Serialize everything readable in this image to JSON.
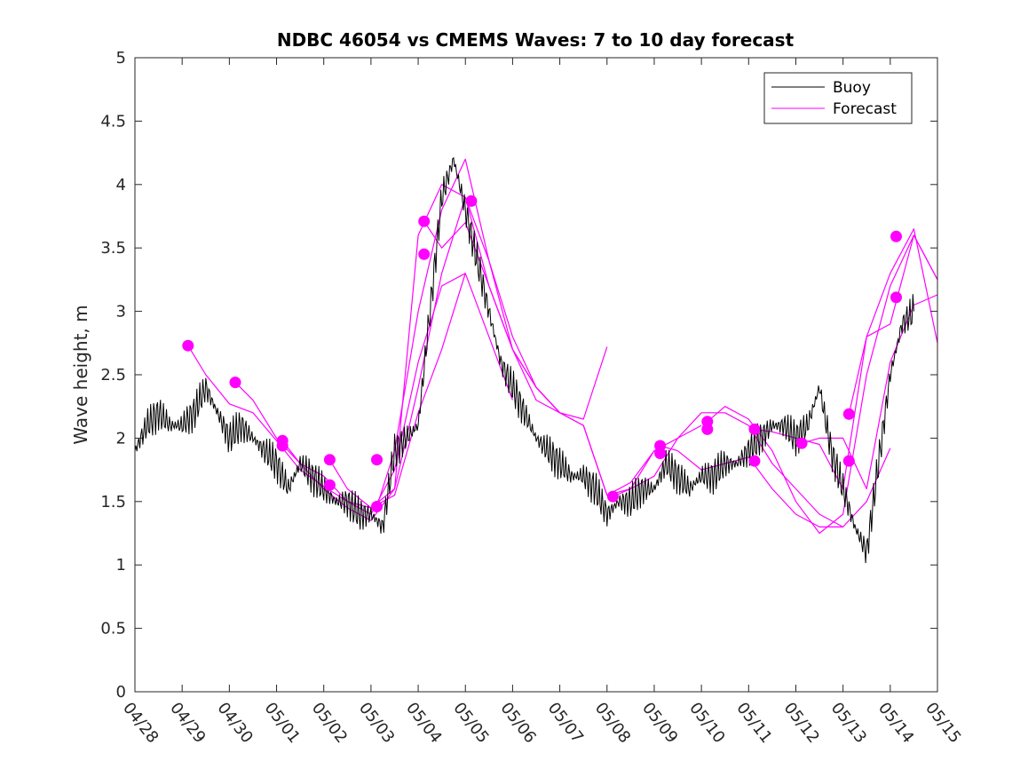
{
  "chart_data": {
    "type": "line",
    "title": "NDBC 46054 vs CMEMS Waves: 7 to 10 day forecast",
    "xlabel": "",
    "ylabel": "Wave height, m",
    "x_type": "date",
    "x_tick_labels": [
      "04/28",
      "04/29",
      "04/30",
      "05/01",
      "05/02",
      "05/03",
      "05/04",
      "05/05",
      "05/06",
      "05/07",
      "05/08",
      "05/09",
      "05/10",
      "05/11",
      "05/12",
      "05/13",
      "05/14",
      "05/15"
    ],
    "xlim": [
      "04/28",
      "05/15"
    ],
    "y_ticks": [
      "0",
      "0.5",
      "1",
      "1.5",
      "2",
      "2.5",
      "3",
      "3.5",
      "4",
      "4.5",
      "5"
    ],
    "ylim": [
      0,
      5
    ],
    "grid": false,
    "legend": {
      "position": "top-right",
      "entries": [
        "Buoy",
        "Forecast"
      ]
    },
    "colors": {
      "buoy": "#000000",
      "forecast": "#ff00ff"
    },
    "buoy": {
      "name": "Buoy",
      "x": [
        "04/28 00:00",
        "04/28 06:00",
        "04/28 12:00",
        "04/28 18:00",
        "04/29 00:00",
        "04/29 06:00",
        "04/29 12:00",
        "04/29 18:00",
        "04/30 00:00",
        "04/30 06:00",
        "04/30 12:00",
        "04/30 18:00",
        "05/01 00:00",
        "05/01 06:00",
        "05/01 12:00",
        "05/01 18:00",
        "05/02 00:00",
        "05/02 06:00",
        "05/02 12:00",
        "05/02 18:00",
        "05/03 00:00",
        "05/03 06:00",
        "05/03 12:00",
        "05/03 18:00",
        "05/04 00:00",
        "05/04 06:00",
        "05/04 12:00",
        "05/04 18:00",
        "05/05 00:00",
        "05/05 06:00",
        "05/05 12:00",
        "05/05 18:00",
        "05/06 00:00",
        "05/06 06:00",
        "05/06 12:00",
        "05/06 18:00",
        "05/07 00:00",
        "05/07 06:00",
        "05/07 12:00",
        "05/07 18:00",
        "05/08 00:00",
        "05/08 06:00",
        "05/08 12:00",
        "05/08 18:00",
        "05/09 00:00",
        "05/09 06:00",
        "05/09 12:00",
        "05/09 18:00",
        "05/10 00:00",
        "05/10 06:00",
        "05/10 12:00",
        "05/10 18:00",
        "05/11 00:00",
        "05/11 06:00",
        "05/11 12:00",
        "05/11 18:00",
        "05/12 00:00",
        "05/12 06:00",
        "05/12 12:00",
        "05/12 18:00",
        "05/13 00:00",
        "05/13 06:00",
        "05/13 12:00",
        "05/13 18:00",
        "05/14 00:00",
        "05/14 06:00",
        "05/14 12:00"
      ],
      "values": [
        1.9,
        2.1,
        2.2,
        2.1,
        2.1,
        2.2,
        2.4,
        2.2,
        2.0,
        2.1,
        2.0,
        1.9,
        1.8,
        1.6,
        1.8,
        1.7,
        1.6,
        1.5,
        1.5,
        1.4,
        1.4,
        1.3,
        1.9,
        2.0,
        2.1,
        3.0,
        3.9,
        4.2,
        3.8,
        3.4,
        3.0,
        2.6,
        2.4,
        2.2,
        2.0,
        1.9,
        1.8,
        1.7,
        1.7,
        1.6,
        1.4,
        1.5,
        1.5,
        1.6,
        1.6,
        1.8,
        1.7,
        1.6,
        1.7,
        1.7,
        1.8,
        1.8,
        1.9,
        2.0,
        2.1,
        2.1,
        2.0,
        2.1,
        2.4,
        1.9,
        1.6,
        1.3,
        1.1,
        1.8,
        2.5,
        2.9,
        3.0
      ]
    },
    "forecasts": [
      {
        "name": "Forecast",
        "x": [
          "04/29 03:00",
          "04/29 12:00",
          "04/30 00:00",
          "04/30 12:00",
          "05/01 00:00",
          "05/01 12:00",
          "05/02 00:00",
          "05/02 12:00",
          "05/03 00:00",
          "05/03 12:00",
          "05/04 00:00",
          "05/04 12:00",
          "05/05 00:00"
        ],
        "values": [
          2.73,
          2.5,
          2.27,
          2.2,
          1.98,
          1.75,
          1.62,
          1.5,
          1.4,
          1.75,
          2.6,
          3.2,
          3.3
        ]
      },
      {
        "name": "Forecast",
        "x": [
          "04/30 03:00",
          "04/30 12:00",
          "05/01 00:00",
          "05/01 12:00",
          "05/02 00:00",
          "05/02 12:00",
          "05/03 00:00",
          "05/03 12:00",
          "05/04 00:00",
          "05/04 12:00",
          "05/05 00:00",
          "05/05 12:00",
          "05/06 00:00"
        ],
        "values": [
          2.44,
          2.3,
          2.0,
          1.8,
          1.7,
          1.5,
          1.45,
          1.55,
          2.2,
          2.7,
          3.3,
          2.8,
          2.3
        ]
      },
      {
        "name": "Forecast",
        "x": [
          "05/01 03:00",
          "05/01 12:00",
          "05/02 00:00",
          "05/02 12:00",
          "05/03 00:00",
          "05/03 12:00",
          "05/04 00:00",
          "05/04 12:00",
          "05/05 00:00",
          "05/05 12:00",
          "05/06 00:00",
          "05/06 12:00",
          "05/07 00:00"
        ],
        "values": [
          1.98,
          1.8,
          1.6,
          1.45,
          1.35,
          1.6,
          2.4,
          3.3,
          3.9,
          3.4,
          2.7,
          2.3,
          2.2
        ]
      },
      {
        "name": "Forecast",
        "x": [
          "05/02 03:00",
          "05/02 12:00",
          "05/03 00:00",
          "05/03 12:00",
          "05/04 00:00",
          "05/04 12:00",
          "05/05 00:00",
          "05/05 12:00",
          "05/06 00:00",
          "05/06 12:00",
          "05/07 00:00",
          "05/07 12:00",
          "05/08 00:00"
        ],
        "values": [
          1.83,
          1.6,
          1.45,
          1.6,
          3.6,
          4.0,
          3.9,
          3.2,
          2.7,
          2.4,
          2.2,
          2.15,
          2.72
        ]
      },
      {
        "name": "Forecast",
        "x": [
          "05/03 03:00",
          "05/03 12:00",
          "05/04 00:00",
          "05/04 12:00",
          "05/05 00:00",
          "05/05 12:00",
          "05/06 00:00",
          "05/06 12:00",
          "05/07 00:00",
          "05/07 12:00",
          "05/08 00:00",
          "05/08 12:00",
          "05/09 00:00"
        ],
        "values": [
          1.46,
          1.9,
          3.0,
          3.8,
          4.2,
          3.4,
          2.8,
          2.4,
          2.2,
          2.1,
          1.55,
          1.6,
          1.9
        ]
      },
      {
        "name": "Forecast",
        "x": [
          "05/04 03:00",
          "05/04 12:00",
          "05/05 00:00",
          "05/05 12:00",
          "05/06 00:00",
          "05/06 12:00",
          "05/07 00:00",
          "05/07 12:00",
          "05/08 00:00",
          "05/08 12:00",
          "05/09 00:00",
          "05/09 12:00",
          "05/10 00:00"
        ],
        "values": [
          3.71,
          3.5,
          3.7,
          3.2,
          2.7,
          2.4,
          2.2,
          2.1,
          1.55,
          1.65,
          1.9,
          2.0,
          2.1
        ]
      },
      {
        "name": "Forecast",
        "x": [
          "05/08 03:00",
          "05/08 12:00",
          "05/09 00:00",
          "05/09 12:00",
          "05/10 00:00",
          "05/10 12:00",
          "05/11 00:00",
          "05/11 12:00",
          "05/12 00:00",
          "05/12 12:00",
          "05/13 00:00"
        ],
        "values": [
          1.54,
          1.6,
          1.7,
          2.0,
          2.2,
          2.2,
          2.1,
          1.8,
          1.6,
          1.4,
          1.3
        ]
      },
      {
        "name": "Forecast",
        "x": [
          "05/09 03:00",
          "05/09 12:00",
          "05/10 00:00",
          "05/10 12:00",
          "05/11 00:00",
          "05/11 12:00",
          "05/12 00:00",
          "05/12 12:00",
          "05/13 00:00",
          "05/13 12:00",
          "05/14 00:00"
        ],
        "values": [
          1.94,
          1.9,
          1.75,
          1.8,
          1.85,
          1.6,
          1.4,
          1.3,
          1.3,
          1.5,
          1.92
        ]
      },
      {
        "name": "Forecast",
        "x": [
          "05/10 03:00",
          "05/10 12:00",
          "05/11 00:00",
          "05/11 12:00",
          "05/12 00:00",
          "05/12 12:00",
          "05/13 00:00",
          "05/13 12:00",
          "05/14 00:00",
          "05/14 12:00",
          "05/15 00:00"
        ],
        "values": [
          2.13,
          2.25,
          2.15,
          1.9,
          1.5,
          1.25,
          1.4,
          2.5,
          3.2,
          3.6,
          3.25
        ]
      },
      {
        "name": "Forecast",
        "x": [
          "05/11 03:00",
          "05/11 12:00",
          "05/12 00:00",
          "05/12 12:00",
          "05/13 00:00",
          "05/13 12:00",
          "05/14 00:00",
          "05/14 12:00",
          "05/15 00:00"
        ],
        "values": [
          2.07,
          2.05,
          2.0,
          1.95,
          1.6,
          2.8,
          3.3,
          3.65,
          2.75
        ]
      },
      {
        "name": "Forecast",
        "x": [
          "05/12 03:00",
          "05/12 12:00",
          "05/13 00:00",
          "05/13 12:00",
          "05/14 00:00",
          "05/14 12:00",
          "05/15 00:00"
        ],
        "values": [
          1.96,
          2.0,
          2.0,
          1.6,
          2.6,
          3.05,
          3.13
        ]
      },
      {
        "name": "Forecast",
        "x": [
          "05/13 03:00",
          "05/13 12:00",
          "05/14 00:00",
          "05/14 12:00",
          "05/15 00:00"
        ],
        "values": [
          2.19,
          2.8,
          2.9,
          3.6,
          3.25
        ]
      }
    ],
    "forecast_start_markers": {
      "x": [
        "04/29 03:00",
        "04/30 03:00",
        "05/01 03:00",
        "05/01 03:00",
        "05/02 03:00",
        "05/02 03:00",
        "05/03 03:00",
        "05/03 03:00",
        "05/04 03:00",
        "05/04 03:00",
        "05/05 03:00",
        "05/08 03:00",
        "05/09 03:00",
        "05/09 03:00",
        "05/10 03:00",
        "05/10 03:00",
        "05/11 03:00",
        "05/11 03:00",
        "05/12 03:00",
        "05/13 03:00",
        "05/13 03:00",
        "05/14 03:00",
        "05/14 03:00"
      ],
      "values": [
        2.73,
        2.44,
        1.98,
        1.94,
        1.83,
        1.63,
        1.83,
        1.46,
        3.71,
        3.45,
        3.87,
        1.54,
        1.94,
        1.88,
        2.13,
        2.07,
        2.07,
        1.82,
        1.96,
        2.19,
        1.82,
        3.59,
        3.11
      ]
    }
  }
}
